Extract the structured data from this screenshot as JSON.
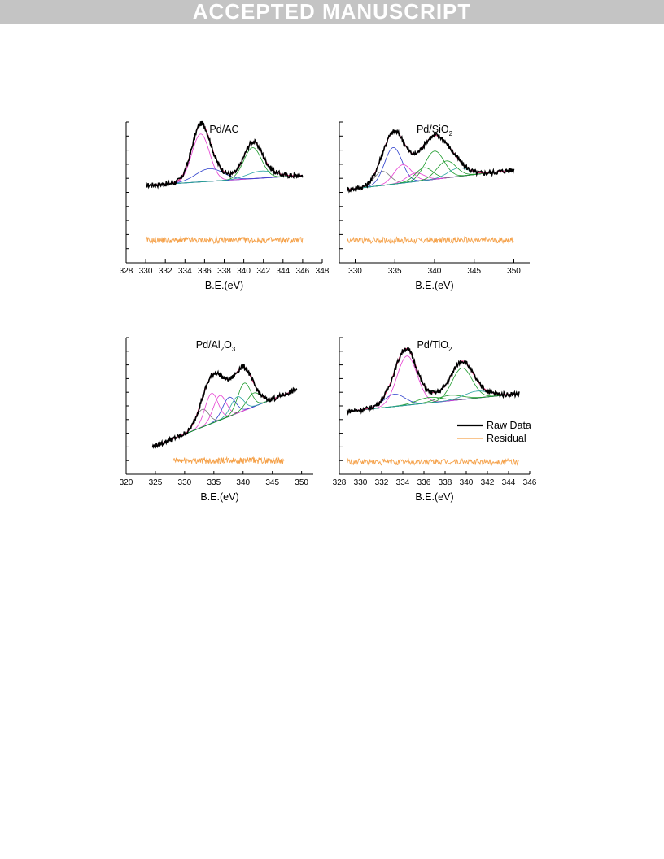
{
  "banner": {
    "text": "ACCEPTED MANUSCRIPT"
  },
  "legend": {
    "raw": {
      "label": "Raw Data",
      "color": "#000000"
    },
    "residual": {
      "label": "Residual",
      "color": "#f5a24b"
    }
  },
  "component_colors": {
    "envelope": "#e6307a",
    "baseline": "#2a36c8",
    "peak_a": "#e63fd2",
    "peak_b": "#2d3fcc",
    "peak_c": "#1b9a2a",
    "peak_d": "#2aa4a4",
    "peak_e": "#7a7a7a"
  },
  "chart_data": [
    {
      "type": "line",
      "title": "Pd/AC",
      "xlabel": "B.E.(eV)",
      "xlim": [
        328,
        348
      ],
      "ylim": [
        0,
        10
      ],
      "xticks": [
        328,
        330,
        332,
        334,
        336,
        338,
        340,
        342,
        344,
        346,
        348
      ],
      "x_range": [
        330,
        346
      ],
      "background": {
        "start": 5.5,
        "end": 6.2
      },
      "peaks": [
        {
          "center": 335.6,
          "height": 3.4,
          "width": 0.9,
          "color": "peak_a"
        },
        {
          "center": 336.5,
          "height": 0.9,
          "width": 1.4,
          "color": "peak_b"
        },
        {
          "center": 340.9,
          "height": 2.2,
          "width": 0.9,
          "color": "peak_c"
        },
        {
          "center": 341.8,
          "height": 0.5,
          "width": 1.4,
          "color": "peak_d"
        }
      ],
      "residual_level": 1.6,
      "series": [
        {
          "name": "Raw Data"
        },
        {
          "name": "Residual"
        }
      ]
    },
    {
      "type": "line",
      "title": "Pd/SiO",
      "title_sub": "2",
      "xlabel": "B.E.(eV)",
      "xlim": [
        328,
        352
      ],
      "ylim": [
        0,
        10
      ],
      "xticks": [
        330,
        335,
        340,
        345,
        350
      ],
      "x_range": [
        329,
        350
      ],
      "background": {
        "start": 5.2,
        "end": 6.6
      },
      "peaks": [
        {
          "center": 333.4,
          "height": 1.0,
          "width": 1.0,
          "color": "peak_e"
        },
        {
          "center": 334.8,
          "height": 2.6,
          "width": 1.1,
          "color": "peak_b"
        },
        {
          "center": 336.0,
          "height": 1.3,
          "width": 1.1,
          "color": "peak_a"
        },
        {
          "center": 337.6,
          "height": 0.6,
          "width": 1.1,
          "color": "peak_a"
        },
        {
          "center": 338.7,
          "height": 0.9,
          "width": 1.1,
          "color": "peak_c"
        },
        {
          "center": 340.0,
          "height": 2.0,
          "width": 1.2,
          "color": "peak_c"
        },
        {
          "center": 341.5,
          "height": 1.2,
          "width": 1.2,
          "color": "peak_c"
        },
        {
          "center": 343.0,
          "height": 0.6,
          "width": 1.3,
          "color": "peak_d"
        }
      ],
      "residual_level": 1.6,
      "series": [
        {
          "name": "Raw Data"
        },
        {
          "name": "Residual"
        }
      ]
    },
    {
      "type": "line",
      "title": "Pd/Al",
      "title_sub": "2",
      "title_mid": "O",
      "title_sub2": "3",
      "xlabel": "B.E.(eV)",
      "xlim": [
        320,
        352
      ],
      "ylim": [
        0,
        10
      ],
      "xticks": [
        320,
        325,
        330,
        335,
        340,
        345,
        350
      ],
      "x_range": [
        324.5,
        349.2
      ],
      "background": {
        "start": 2.0,
        "end": 6.2
      },
      "peaks": [
        {
          "center": 333.0,
          "height": 1.3,
          "width": 1.1,
          "color": "peak_e"
        },
        {
          "center": 334.6,
          "height": 2.2,
          "width": 1.1,
          "color": "peak_a"
        },
        {
          "center": 336.0,
          "height": 1.8,
          "width": 1.1,
          "color": "peak_a"
        },
        {
          "center": 337.6,
          "height": 1.4,
          "width": 1.1,
          "color": "peak_b"
        },
        {
          "center": 339.0,
          "height": 1.2,
          "width": 1.1,
          "color": "peak_d"
        },
        {
          "center": 340.2,
          "height": 2.0,
          "width": 1.1,
          "color": "peak_c"
        },
        {
          "center": 341.8,
          "height": 1.0,
          "width": 1.2,
          "color": "peak_c"
        }
      ],
      "residual_level": 1.0,
      "series": [
        {
          "name": "Raw Data"
        },
        {
          "name": "Residual"
        }
      ]
    },
    {
      "type": "line",
      "title": "Pd/TiO",
      "title_sub": "2",
      "xlabel": "B.E.(eV)",
      "xlim": [
        328,
        346
      ],
      "ylim": [
        0,
        10
      ],
      "xticks": [
        328,
        330,
        332,
        334,
        336,
        338,
        340,
        342,
        344,
        346
      ],
      "x_range": [
        328.7,
        345
      ],
      "background": {
        "start": 4.6,
        "end": 5.9
      },
      "peaks": [
        {
          "center": 333.2,
          "height": 0.9,
          "width": 1.0,
          "color": "peak_b"
        },
        {
          "center": 334.4,
          "height": 3.6,
          "width": 0.95,
          "color": "peak_a"
        },
        {
          "center": 336.5,
          "height": 0.4,
          "width": 1.2,
          "color": "peak_c"
        },
        {
          "center": 338.4,
          "height": 0.4,
          "width": 1.2,
          "color": "peak_c"
        },
        {
          "center": 339.6,
          "height": 2.3,
          "width": 0.95,
          "color": "peak_c"
        },
        {
          "center": 341.0,
          "height": 0.5,
          "width": 1.2,
          "color": "peak_d"
        }
      ],
      "residual_level": 0.9,
      "series": [
        {
          "name": "Raw Data"
        },
        {
          "name": "Residual"
        }
      ],
      "legend": "bottom-right"
    }
  ]
}
